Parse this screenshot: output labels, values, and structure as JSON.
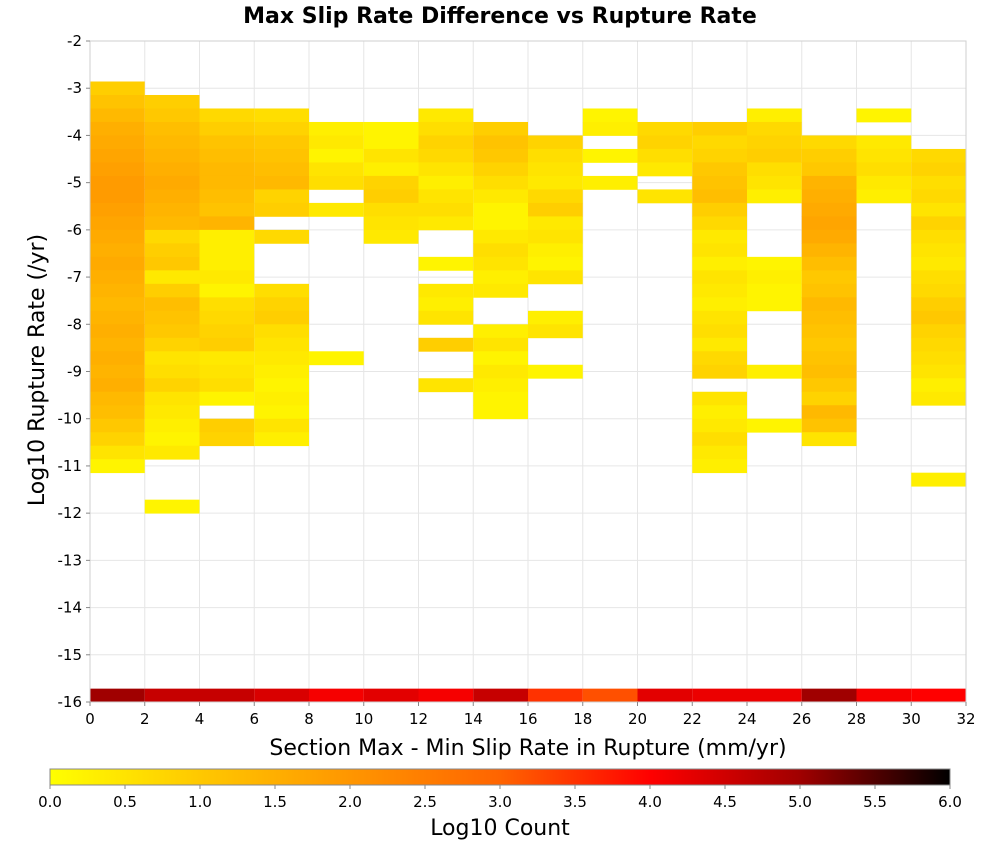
{
  "chart_data": {
    "type": "heatmap",
    "title": "Max Slip Rate Difference vs Rupture Rate",
    "xlabel": "Section Max - Min Slip Rate in Rupture (mm/yr)",
    "ylabel": "Log10 Rupture Rate (/yr)",
    "xlim": [
      0,
      32
    ],
    "ylim": [
      -16,
      -2
    ],
    "x_ticks": [
      "0",
      "2",
      "4",
      "6",
      "8",
      "10",
      "12",
      "14",
      "16",
      "18",
      "20",
      "22",
      "24",
      "26",
      "28",
      "30",
      "32"
    ],
    "y_ticks": [
      "-2",
      "-3",
      "-4",
      "-5",
      "-6",
      "-7",
      "-8",
      "-9",
      "-10",
      "-11",
      "-12",
      "-13",
      "-14",
      "-15",
      "-16"
    ],
    "x_bin_width": 2,
    "y_bin_height": 0.2857,
    "grid": true,
    "colorbar": {
      "label": "Log10 Count",
      "range": [
        0,
        6
      ],
      "ticks": [
        "0.0",
        "0.5",
        "1.0",
        "1.5",
        "2.0",
        "2.5",
        "3.0",
        "3.5",
        "4.0",
        "4.5",
        "5.0",
        "5.5",
        "6.0"
      ],
      "colors": [
        "#ffff00",
        "#ffc800",
        "#ff9600",
        "#ff6400",
        "#ff0000",
        "#a00000",
        "#000000"
      ]
    },
    "columns": [
      {
        "x": 1,
        "top_row": 45,
        "values": [
          0.9,
          1.1,
          1.3,
          1.5,
          1.6,
          1.7,
          1.8,
          1.9,
          1.9,
          1.8,
          1.7,
          1.6,
          1.5,
          1.6,
          1.5,
          1.4,
          1.3,
          1.4,
          1.5,
          1.4,
          1.5,
          1.4,
          1.5,
          1.3,
          1.2,
          1.0,
          0.8,
          0.5,
          0.2
        ]
      },
      {
        "x": 3,
        "top_row": 44,
        "values": [
          0.9,
          1.0,
          1.2,
          1.3,
          1.4,
          1.5,
          1.6,
          1.5,
          1.4,
          1.3,
          0.7,
          0.9,
          1.0,
          0.4,
          0.9,
          1.2,
          1.1,
          1.0,
          0.8,
          0.5,
          0.6,
          0.8,
          0.5,
          0.4,
          0.3,
          0.2,
          0.4,
          null,
          null,
          null,
          0.2
        ]
      },
      {
        "x": 5,
        "top_row": 43,
        "values": [
          0.7,
          0.9,
          1.1,
          1.2,
          1.3,
          1.3,
          1.2,
          1.1,
          1.4,
          0.3,
          0.3,
          0.3,
          0.4,
          0.2,
          0.6,
          0.7,
          0.8,
          0.9,
          0.4,
          0.5,
          0.6,
          0.2,
          null,
          0.9,
          0.8
        ]
      },
      {
        "x": 7,
        "top_row": 43,
        "values": [
          0.6,
          0.8,
          1.0,
          1.1,
          1.2,
          1.3,
          0.8,
          0.9,
          null,
          0.7,
          null,
          null,
          null,
          0.6,
          0.8,
          0.9,
          0.6,
          0.5,
          0.4,
          0.3,
          0.2,
          0.3,
          0.2,
          0.5,
          0.3
        ]
      },
      {
        "x": 9,
        "top_row": 42,
        "values": [
          0.3,
          0.4,
          0.2,
          0.5,
          0.6,
          null,
          0.4,
          null,
          null,
          null,
          null,
          null,
          null,
          null,
          null,
          null,
          null,
          0.2
        ]
      },
      {
        "x": 11,
        "top_row": 42,
        "values": [
          0.2,
          0.2,
          0.5,
          0.3,
          0.8,
          0.9,
          0.6,
          0.5,
          0.4
        ]
      },
      {
        "x": 13,
        "top_row": 43,
        "values": [
          0.4,
          0.6,
          0.8,
          0.7,
          0.5,
          0.3,
          0.5,
          0.6,
          0.4,
          null,
          null,
          0.2,
          null,
          0.4,
          0.3,
          0.5,
          null,
          0.9,
          null,
          null,
          0.5
        ]
      },
      {
        "x": 15,
        "top_row": 42,
        "values": [
          0.9,
          1.1,
          1.0,
          0.8,
          0.6,
          0.4,
          0.2,
          0.2,
          0.4,
          0.6,
          0.5,
          0.3,
          0.4,
          null,
          null,
          0.3,
          0.5,
          0.2,
          0.4,
          0.3,
          0.2,
          0.2
        ]
      },
      {
        "x": 17,
        "top_row": 41,
        "values": [
          0.8,
          0.6,
          0.5,
          0.4,
          0.7,
          0.9,
          0.4,
          0.5,
          0.3,
          0.2,
          0.5,
          null,
          null,
          0.3,
          0.5,
          null,
          null,
          0.2
        ]
      },
      {
        "x": 19,
        "top_row": 43,
        "values": [
          0.2,
          0.3,
          null,
          0.2,
          null,
          0.3
        ]
      },
      {
        "x": 21,
        "top_row": 42,
        "values": [
          0.7,
          0.8,
          0.6,
          0.4,
          null,
          0.5
        ]
      },
      {
        "x": 23,
        "top_row": 42,
        "values": [
          0.9,
          0.7,
          0.8,
          1.0,
          1.1,
          1.2,
          0.9,
          0.7,
          0.4,
          0.5,
          0.3,
          0.5,
          0.4,
          0.3,
          0.5,
          0.6,
          0.4,
          0.7,
          0.8,
          null,
          0.5,
          0.3,
          0.4,
          0.6,
          0.4,
          0.3
        ]
      },
      {
        "x": 25,
        "top_row": 43,
        "values": [
          0.3,
          0.7,
          0.8,
          0.9,
          0.6,
          0.5,
          0.3,
          null,
          null,
          null,
          null,
          0.2,
          0.3,
          0.2,
          0.2,
          null,
          null,
          null,
          null,
          0.3,
          null,
          null,
          null,
          0.2
        ]
      },
      {
        "x": 27,
        "top_row": 41,
        "values": [
          0.7,
          0.9,
          1.0,
          1.4,
          1.5,
          1.6,
          1.7,
          1.6,
          1.4,
          1.2,
          1.0,
          1.1,
          1.3,
          1.2,
          1.1,
          1.0,
          1.1,
          1.2,
          1.0,
          0.8,
          1.3,
          1.1,
          0.5
        ]
      },
      {
        "x": 29,
        "top_row": 43,
        "values": [
          0.2,
          null,
          0.4,
          0.5,
          0.6,
          0.4,
          0.3
        ]
      },
      {
        "x": 31,
        "top_row": 40,
        "values": [
          0.7,
          0.8,
          0.6,
          0.7,
          0.5,
          0.8,
          0.6,
          0.5,
          0.4,
          0.6,
          0.7,
          0.9,
          1.0,
          0.8,
          0.7,
          0.6,
          0.5,
          0.3,
          0.4,
          null,
          null,
          null,
          null,
          null,
          0.3
        ]
      }
    ],
    "bottom_strip": {
      "y": -15.86,
      "values": [
        5.0,
        4.6,
        4.6,
        4.4,
        4.1,
        4.3,
        4.1,
        4.6,
        3.5,
        3.2,
        4.3,
        4.2,
        4.2,
        5.0,
        4.1,
        4.0
      ]
    }
  }
}
